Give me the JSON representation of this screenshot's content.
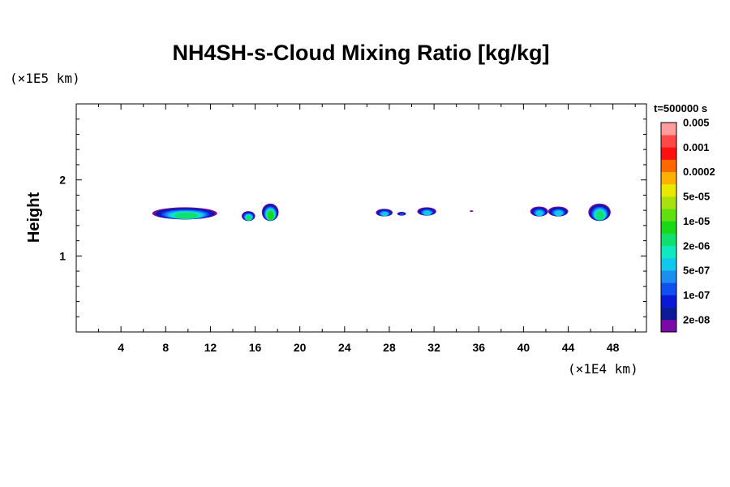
{
  "chart_data": {
    "type": "heatmap",
    "title": "NH4SH-s-Cloud Mixing Ratio [kg/kg]",
    "ylabel": "Height",
    "xunit": "(×1E4 km)",
    "yunit": "(×1E5 km)",
    "time_label": "t=500000 s",
    "xlim": [
      0,
      51
    ],
    "ylim": [
      0,
      3
    ],
    "x_ticks": [
      4,
      8,
      12,
      16,
      20,
      24,
      28,
      32,
      36,
      40,
      44,
      48
    ],
    "x_tick_labels": [
      "4",
      "8",
      "12",
      "16",
      "20",
      "24",
      "28",
      "32",
      "36",
      "40",
      "44",
      "48"
    ],
    "y_ticks": [
      1,
      2
    ],
    "y_tick_labels": [
      "1",
      "2"
    ],
    "colorbar": {
      "colors": [
        "#7a0aa8",
        "#0c1a96",
        "#0a18d8",
        "#1050f0",
        "#1c8ef0",
        "#10c8ec",
        "#10e8c0",
        "#10e070",
        "#18d818",
        "#60e010",
        "#a8e010",
        "#e8e800",
        "#ffb000",
        "#ff6800",
        "#ff1010",
        "#ff4848",
        "#ff9c9c"
      ],
      "labels": [
        "2e-08",
        "1e-07",
        "5e-07",
        "2e-06",
        "1e-05",
        "5e-05",
        "0.0002",
        "0.001",
        "0.005"
      ]
    },
    "cloud_regions": [
      {
        "x_start": 6.8,
        "x_end": 12.6,
        "y_bottom": 1.48,
        "y_top": 1.64,
        "max_level": 8
      },
      {
        "x_start": 14.8,
        "x_end": 16.0,
        "y_bottom": 1.46,
        "y_top": 1.59,
        "max_level": 8
      },
      {
        "x_start": 16.6,
        "x_end": 18.1,
        "y_bottom": 1.46,
        "y_top": 1.69,
        "max_level": 9
      },
      {
        "x_start": 26.8,
        "x_end": 28.3,
        "y_bottom": 1.52,
        "y_top": 1.62,
        "max_level": 6
      },
      {
        "x_start": 28.7,
        "x_end": 29.5,
        "y_bottom": 1.53,
        "y_top": 1.58,
        "max_level": 4
      },
      {
        "x_start": 30.5,
        "x_end": 32.2,
        "y_bottom": 1.53,
        "y_top": 1.64,
        "max_level": 6
      },
      {
        "x_start": 35.2,
        "x_end": 35.5,
        "y_bottom": 1.58,
        "y_top": 1.6,
        "max_level": 1
      },
      {
        "x_start": 40.6,
        "x_end": 42.2,
        "y_bottom": 1.52,
        "y_top": 1.65,
        "max_level": 6
      },
      {
        "x_start": 42.2,
        "x_end": 44.0,
        "y_bottom": 1.52,
        "y_top": 1.65,
        "max_level": 6
      },
      {
        "x_start": 45.8,
        "x_end": 47.8,
        "y_bottom": 1.46,
        "y_top": 1.69,
        "max_level": 8
      }
    ]
  }
}
